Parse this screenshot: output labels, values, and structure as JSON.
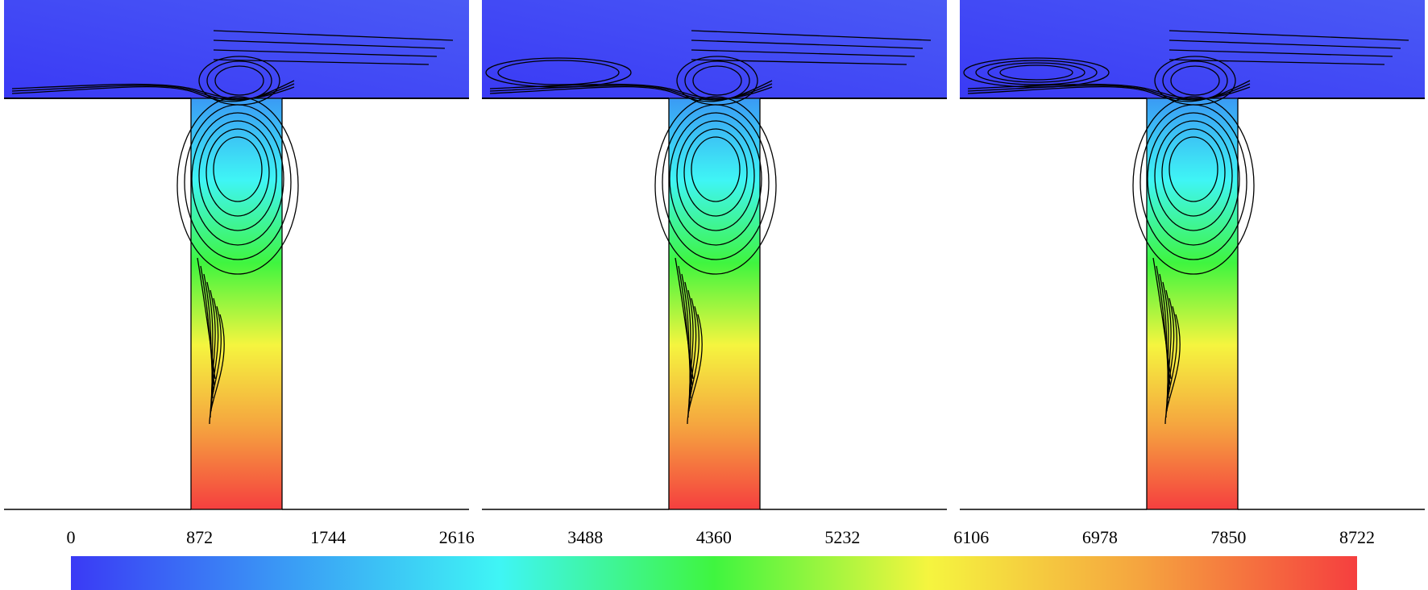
{
  "chart_data": {
    "type": "contour",
    "colorbar": {
      "clim": [
        0,
        8722
      ],
      "ticks": [
        0,
        872,
        1744,
        2616,
        3488,
        4360,
        5232,
        6106,
        6978,
        7850,
        8722
      ],
      "colors": [
        "#3a3af5",
        "#3a9af5",
        "#3ff5f5",
        "#3ff53f",
        "#f5f53f",
        "#f5a33f",
        "#f53f3f"
      ]
    },
    "panels": 3
  }
}
